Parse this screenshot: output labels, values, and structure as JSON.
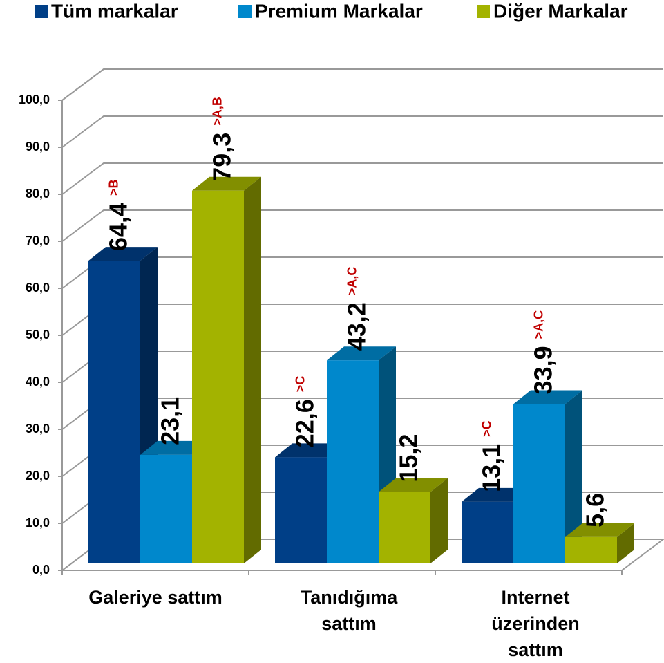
{
  "chart_data": {
    "type": "bar3d",
    "categories": [
      "Galeriye sattım",
      "Tanıdığıma sattım",
      "Internet üzerinden sattım"
    ],
    "series": [
      {
        "name": "Tüm markalar",
        "color": "#003f87",
        "values": [
          64.4,
          22.6,
          13.1
        ],
        "value_labels": [
          "64,4",
          "22,6",
          "13,1"
        ],
        "significance": [
          ">B",
          ">C",
          ">C"
        ]
      },
      {
        "name": "Premium Markalar",
        "color": "#0088cc",
        "values": [
          23.1,
          43.2,
          33.9
        ],
        "value_labels": [
          "23,1",
          "43,2",
          "33,9"
        ],
        "significance": [
          null,
          ">A,C",
          ">A,C"
        ]
      },
      {
        "name": "Diğer Markalar",
        "color": "#a3b300",
        "values": [
          79.3,
          15.2,
          5.6
        ],
        "value_labels": [
          "79,3",
          "15,2",
          "5,6"
        ],
        "significance": [
          ">A,B",
          null,
          null
        ]
      }
    ],
    "ylim": [
      0,
      100
    ],
    "yticks": [
      {
        "value": 0,
        "label": "0,0"
      },
      {
        "value": 10,
        "label": "10,0"
      },
      {
        "value": 20,
        "label": "20,0"
      },
      {
        "value": 30,
        "label": "30,0"
      },
      {
        "value": 40,
        "label": "40,0"
      },
      {
        "value": 50,
        "label": "50,0"
      },
      {
        "value": 60,
        "label": "60,0"
      },
      {
        "value": 70,
        "label": "70,0"
      },
      {
        "value": 80,
        "label": "80,0"
      },
      {
        "value": 90,
        "label": "90,0"
      },
      {
        "value": 100,
        "label": "100,0"
      }
    ],
    "grid": true,
    "legend": "top"
  }
}
